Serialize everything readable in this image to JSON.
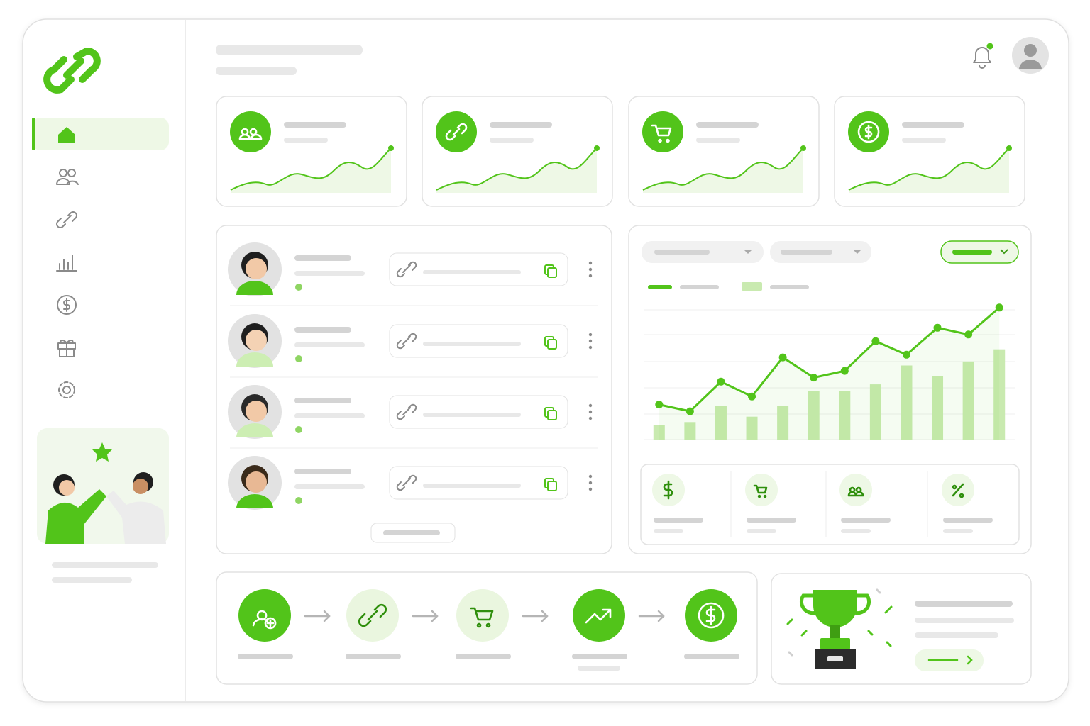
{
  "chart_data": {
    "type": "combo",
    "categories": [
      null,
      null,
      null,
      null,
      null,
      null,
      null,
      null,
      null,
      null,
      null,
      null
    ],
    "series": [
      {
        "type": "bar",
        "color": "#c9eab0",
        "values": [
          11,
          13,
          25,
          17,
          25,
          36,
          36,
          41,
          55,
          47,
          58,
          67
        ]
      },
      {
        "type": "line",
        "color": "#52c41a",
        "values": [
          26,
          21,
          43,
          32,
          61,
          46,
          51,
          73,
          63,
          83,
          78,
          98
        ]
      }
    ],
    "ylim": [
      0,
      100
    ]
  }
}
